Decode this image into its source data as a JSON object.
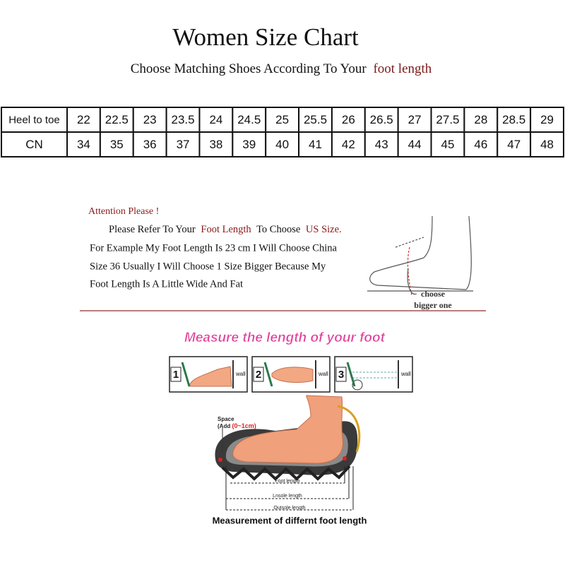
{
  "header": {
    "title": "Women Size Chart",
    "subtitle": "Choose Matching Shoes According To Your",
    "subtitle_highlight": "foot length"
  },
  "table": {
    "rows": [
      [
        "Heel to toe",
        22,
        22.5,
        23,
        23.5,
        24,
        24.5,
        25,
        25.5,
        26,
        26.5,
        27,
        27.5,
        28,
        28.5,
        29
      ],
      [
        "CN",
        34,
        35,
        36,
        37,
        38,
        39,
        40,
        41,
        42,
        43,
        44,
        45,
        46,
        47,
        48
      ]
    ]
  },
  "attention": {
    "heading": "Attention Please !",
    "line1": [
      "Please Refer To Your",
      "Foot Length",
      "To Choose",
      "US Size."
    ],
    "line2": "For Example My Foot Length Is 23 cm I Will Choose China",
    "line3": "Size 36 Usually I Will Choose 1 Size Bigger Because My",
    "line4": "Foot Length Is A Little Wide And Fat",
    "sketch_labels": [
      "choose",
      "bigger one"
    ]
  },
  "measure": {
    "title": "Measure the length of your foot",
    "steps": [
      {
        "number": "1",
        "label": "wall"
      },
      {
        "number": "2",
        "label": "wall"
      },
      {
        "number": "3",
        "label": "wall"
      }
    ],
    "space_label": "Space",
    "space_add": "(Add",
    "space_range": "(0~1cm)",
    "lengths": [
      "Foot length",
      "Lnsole length",
      "Outsole length"
    ],
    "caption": "Measurement of differnt foot length"
  }
}
